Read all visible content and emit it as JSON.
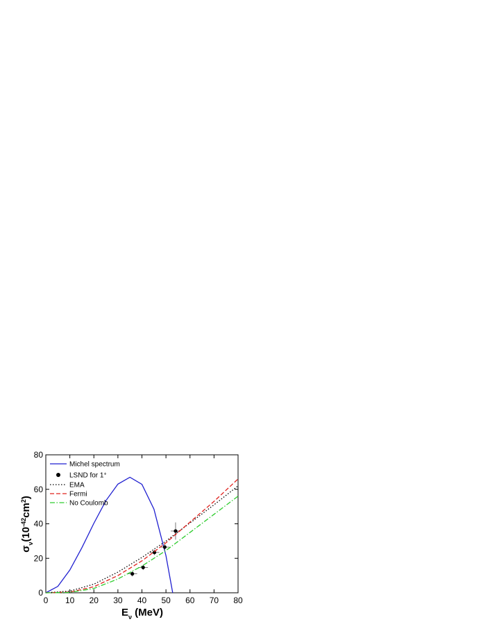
{
  "chart_data": {
    "type": "line",
    "xlabel": [
      {
        "text": "E"
      },
      {
        "text": "ν",
        "shift": "sub"
      },
      {
        "text": " (MeV)"
      }
    ],
    "ylabel": [
      {
        "text": "σ"
      },
      {
        "text": "ν",
        "shift": "sub"
      },
      {
        "text": "(10"
      },
      {
        "text": "-42",
        "shift": "sup"
      },
      {
        "text": "cm"
      },
      {
        "text": "2",
        "shift": "sup"
      },
      {
        "text": ")"
      }
    ],
    "xlim": [
      0,
      80
    ],
    "ylim": [
      0,
      80
    ],
    "xticks": [
      0,
      10,
      20,
      30,
      40,
      50,
      60,
      70,
      80
    ],
    "yticks": [
      0,
      20,
      40,
      60,
      80
    ],
    "legend": "top-left",
    "series": [
      {
        "name": "Michel spectrum",
        "kind": "line",
        "dash": "solid",
        "color": "#1f1fd0",
        "x": [
          0,
          5,
          10,
          15,
          20,
          25,
          30,
          35,
          40,
          45,
          50,
          52.8
        ],
        "values": [
          0,
          3.7,
          13.2,
          26.1,
          40.3,
          53.4,
          63.0,
          67.0,
          62.9,
          48.5,
          21.5,
          0
        ]
      },
      {
        "name": "LSND for 1",
        "name_sup": "+",
        "kind": "scatter",
        "color": "#000000",
        "x": [
          36,
          40.5,
          45.2,
          49.5,
          54
        ],
        "values": [
          11,
          14.7,
          23.4,
          26.5,
          35.8
        ],
        "x_err": [
          2,
          2,
          2,
          2,
          2
        ],
        "y_err": [
          1.5,
          1.5,
          1.5,
          2,
          5
        ]
      },
      {
        "name": "EMA",
        "kind": "line",
        "dash": "dotted",
        "color": "#000000",
        "x": [
          0,
          10,
          20,
          30,
          40,
          50,
          60,
          70,
          80
        ],
        "values": [
          0,
          1,
          5,
          12,
          20.5,
          30,
          40.5,
          51,
          62
        ]
      },
      {
        "name": "Fermi",
        "kind": "line",
        "dash": "dashed",
        "color": "#e0201c",
        "x": [
          0,
          10,
          20,
          30,
          40,
          50,
          60,
          70,
          80
        ],
        "values": [
          0,
          0.4,
          3.5,
          10,
          18.5,
          29,
          41,
          53,
          66
        ]
      },
      {
        "name": "No Coulomb",
        "kind": "line",
        "dash": "dashdot",
        "color": "#2ccc2c",
        "x": [
          0,
          10,
          20,
          30,
          40,
          50,
          60,
          70,
          80
        ],
        "values": [
          0,
          0.2,
          2.5,
          8,
          15.5,
          24.5,
          35,
          45.5,
          56
        ]
      }
    ]
  }
}
